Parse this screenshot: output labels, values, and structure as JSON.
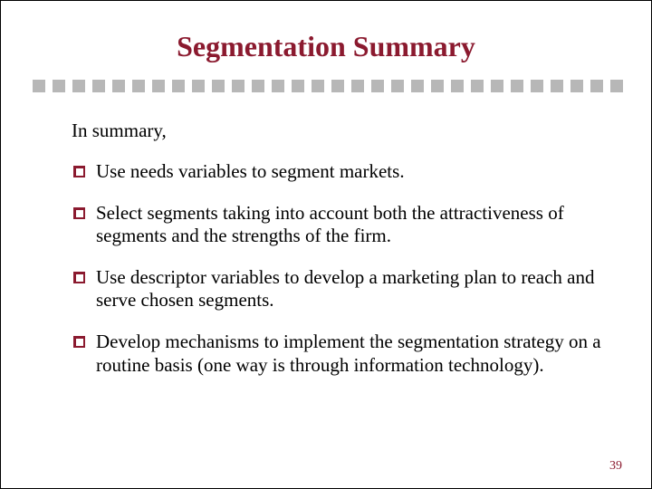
{
  "title": "Segmentation Summary",
  "title_color": "#8b1a2f",
  "title_fontsize": 32,
  "divider": {
    "square_count": 30,
    "square_color": "#b7b7b7",
    "square_size": 14,
    "gap": 8
  },
  "intro": "In summary,",
  "bullets": [
    "Use needs variables to segment markets.",
    "Select segments taking into account both the attractiveness of segments and the strengths of the firm.",
    "Use descriptor variables to develop a marketing plan to reach and serve chosen segments.",
    "Develop mechanisms to implement the segmentation strategy on a routine basis (one way is through information technology)."
  ],
  "bullet_marker_color": "#8b1a2f",
  "body_fontsize": 21,
  "page_number": "39",
  "page_number_color": "#8b1a2f",
  "background_color": "#ffffff",
  "border_color": "#000000"
}
